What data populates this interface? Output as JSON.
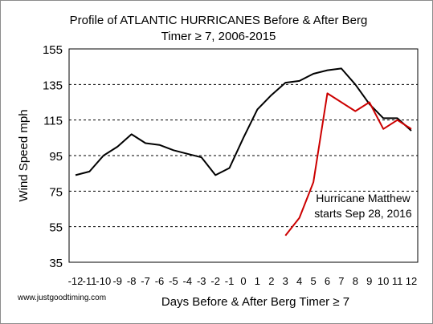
{
  "chart_data": {
    "type": "line",
    "title_line1": "Profile of ATLANTIC HURRICANES Before & After Berg",
    "title_line2": "Timer ≥ 7, 2006-2015",
    "xlabel": "Days Before & After Berg Timer ≥ 7",
    "ylabel": "Wind Speed mph",
    "x": [
      -12,
      -11,
      -10,
      -9,
      -8,
      -7,
      -6,
      -5,
      -4,
      -3,
      -2,
      -1,
      0,
      1,
      2,
      3,
      4,
      5,
      6,
      7,
      8,
      9,
      10,
      11,
      12
    ],
    "xlim": [
      -12,
      12
    ],
    "ylim": [
      35,
      155
    ],
    "yticks": [
      35,
      55,
      75,
      95,
      115,
      135,
      155
    ],
    "xtick_labels": [
      "-12",
      "-11",
      "-10",
      "-9",
      "-8",
      "-7",
      "-6",
      "-5",
      "-4",
      "-3",
      "-2",
      "-1",
      "0",
      "1",
      "2",
      "3",
      "4",
      "5",
      "6",
      "7",
      "8",
      "9",
      "10",
      "11",
      "12"
    ],
    "grid": "horizontal dashed",
    "series": [
      {
        "color": "#000000",
        "x": [
          -12,
          -11,
          -10,
          -9,
          -8,
          -7,
          -6,
          -5,
          -4,
          -3,
          -2,
          -1,
          0,
          1,
          2,
          3,
          4,
          5,
          6,
          7,
          8,
          9,
          10,
          11,
          12
        ],
        "values": [
          84,
          86,
          95,
          100,
          107,
          102,
          101,
          98,
          96,
          94,
          84,
          88,
          105,
          121,
          129,
          136,
          137,
          141,
          143,
          144,
          135,
          124,
          116,
          116,
          109
        ]
      },
      {
        "color": "#cc0000",
        "x": [
          3,
          4,
          5,
          6,
          7,
          8,
          9,
          10,
          11,
          12
        ],
        "values": [
          50,
          60,
          80,
          130,
          125,
          120,
          125,
          110,
          115,
          110
        ]
      }
    ],
    "annotation_line1": "Hurricane Matthew",
    "annotation_line2": "starts Sep 28, 2016",
    "watermark": "www.justgoodtiming.com"
  }
}
